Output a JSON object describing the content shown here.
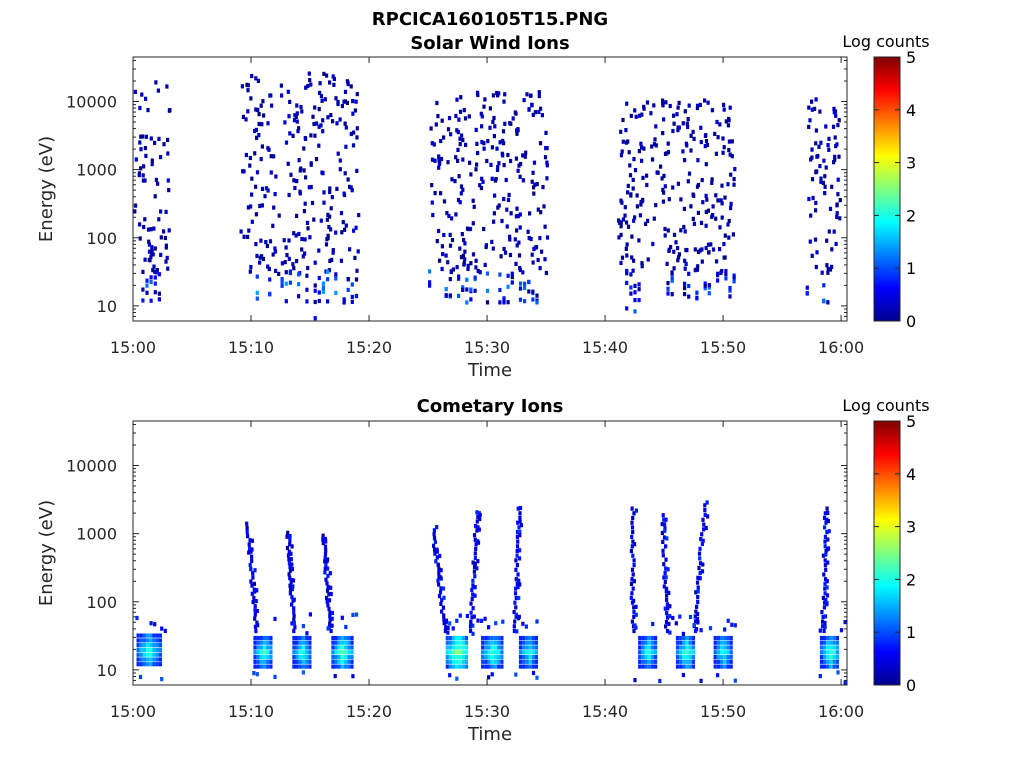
{
  "figure_title": "RPCICA160105T15.PNG",
  "chart_data": [
    {
      "type": "heatmap",
      "title": "Solar Wind Ions",
      "xlabel": "Time",
      "ylabel": "Energy (eV)",
      "x_ticks": [
        "15:00",
        "15:10",
        "15:20",
        "15:30",
        "15:40",
        "15:50",
        "16:00"
      ],
      "y_ticks": [
        "10",
        "100",
        "1000",
        "10000"
      ],
      "y_scale": "log",
      "y_range_ev": [
        6,
        45000
      ],
      "x_range_minutes": [
        0,
        60.5
      ],
      "colorbar": {
        "label": "Log counts",
        "ticks": [
          "0",
          "1",
          "2",
          "3",
          "4",
          "5"
        ],
        "range": [
          0,
          5
        ],
        "colormap": "jet"
      },
      "active_intervals": [
        {
          "start": "15:00",
          "end": "15:03",
          "low_energy_band_ev": [
            12,
            35
          ],
          "peak_log_counts": 1.2,
          "sparse_high_energy_up_to_ev": 22000
        },
        {
          "start": "15:09",
          "end": "15:19",
          "low_energy_band_ev": [
            12,
            35
          ],
          "peak_log_counts": 1.5,
          "sparse_high_energy_up_to_ev": 28000
        },
        {
          "start": "15:25",
          "end": "15:35",
          "low_energy_band_ev": [
            12,
            35
          ],
          "peak_log_counts": 1.3,
          "sparse_high_energy_up_to_ev": 15000
        },
        {
          "start": "15:41",
          "end": "15:51",
          "low_energy_band_ev": [
            12,
            35
          ],
          "peak_log_counts": 1.2,
          "sparse_high_energy_up_to_ev": 12000
        },
        {
          "start": "15:57",
          "end": "16:00",
          "low_energy_band_ev": [
            12,
            35
          ],
          "peak_log_counts": 1.2,
          "sparse_high_energy_up_to_ev": 12000
        }
      ]
    },
    {
      "type": "heatmap",
      "title": "Cometary Ions",
      "xlabel": "Time",
      "ylabel": "Energy (eV)",
      "x_ticks": [
        "15:00",
        "15:10",
        "15:20",
        "15:30",
        "15:40",
        "15:50",
        "16:00"
      ],
      "y_ticks": [
        "10",
        "100",
        "1000",
        "10000"
      ],
      "y_scale": "log",
      "y_range_ev": [
        6,
        45000
      ],
      "x_range_minutes": [
        0,
        60.5
      ],
      "colorbar": {
        "label": "Log counts",
        "ticks": [
          "0",
          "1",
          "2",
          "3",
          "4",
          "5"
        ],
        "range": [
          0,
          5
        ],
        "colormap": "jet"
      },
      "blobs": [
        {
          "t_start": 0.3,
          "t_end": 2.2,
          "e_low": 13,
          "e_high": 35,
          "peak": 2.2
        },
        {
          "t_start": 10.2,
          "t_end": 11.8,
          "e_low": 12,
          "e_high": 35,
          "peak": 2.1
        },
        {
          "t_start": 13.5,
          "t_end": 15.0,
          "e_low": 12,
          "e_high": 35,
          "peak": 2.1
        },
        {
          "t_start": 16.8,
          "t_end": 18.5,
          "e_low": 12,
          "e_high": 35,
          "peak": 2.3
        },
        {
          "t_start": 26.5,
          "t_end": 28.3,
          "e_low": 12,
          "e_high": 35,
          "peak": 2.6
        },
        {
          "t_start": 29.5,
          "t_end": 31.3,
          "e_low": 12,
          "e_high": 35,
          "peak": 2.2
        },
        {
          "t_start": 32.7,
          "t_end": 34.2,
          "e_low": 12,
          "e_high": 35,
          "peak": 2.1
        },
        {
          "t_start": 42.8,
          "t_end": 44.3,
          "e_low": 12,
          "e_high": 35,
          "peak": 2.1
        },
        {
          "t_start": 46.0,
          "t_end": 47.6,
          "e_low": 12,
          "e_high": 35,
          "peak": 2.2
        },
        {
          "t_start": 49.2,
          "t_end": 50.6,
          "e_low": 12,
          "e_high": 35,
          "peak": 2.1
        },
        {
          "t_start": 58.2,
          "t_end": 59.8,
          "e_low": 12,
          "e_high": 35,
          "peak": 2.2
        }
      ],
      "arcs": [
        {
          "t_top": 9.6,
          "e_top": 1500,
          "t_bottom": 10.3,
          "e_bottom": 40
        },
        {
          "t_top": 13.0,
          "e_top": 1100,
          "t_bottom": 13.5,
          "e_bottom": 40
        },
        {
          "t_top": 16.0,
          "e_top": 1000,
          "t_bottom": 16.6,
          "e_bottom": 40
        },
        {
          "t_top": 25.3,
          "e_top": 1200,
          "t_bottom": 26.3,
          "e_bottom": 40
        },
        {
          "t_top": 29.0,
          "e_top": 2200,
          "t_bottom": 28.5,
          "e_bottom": 40
        },
        {
          "t_top": 32.6,
          "e_top": 2500,
          "t_bottom": 32.2,
          "e_bottom": 40
        },
        {
          "t_top": 42.2,
          "e_top": 2500,
          "t_bottom": 42.2,
          "e_bottom": 40
        },
        {
          "t_top": 44.8,
          "e_top": 2000,
          "t_bottom": 45.1,
          "e_bottom": 40
        },
        {
          "t_top": 48.3,
          "e_top": 2800,
          "t_bottom": 47.4,
          "e_bottom": 40
        },
        {
          "t_top": 58.6,
          "e_top": 2500,
          "t_bottom": 58.3,
          "e_bottom": 40
        }
      ]
    }
  ]
}
